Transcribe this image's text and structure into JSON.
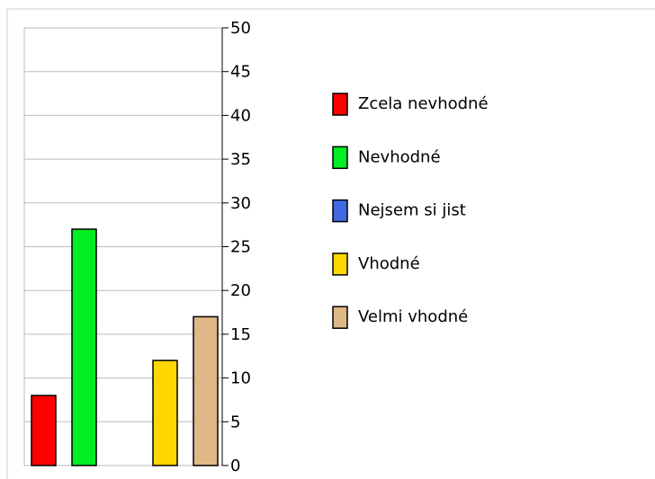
{
  "chart_data": {
    "type": "bar",
    "categories": [
      "Zcela nevhodné",
      "Nevhodné",
      "Nejsem si jist",
      "Vhodné",
      "Velmi vhodné"
    ],
    "values": [
      8,
      27,
      0,
      12,
      17
    ],
    "colors": [
      "#ff0000",
      "#00ee22",
      "#4169e1",
      "#ffd700",
      "#deb887"
    ],
    "ylim": [
      0,
      50
    ],
    "yticks": [
      0,
      5,
      10,
      15,
      20,
      25,
      30,
      35,
      40,
      45,
      50
    ],
    "grid": true,
    "legend": "right"
  }
}
